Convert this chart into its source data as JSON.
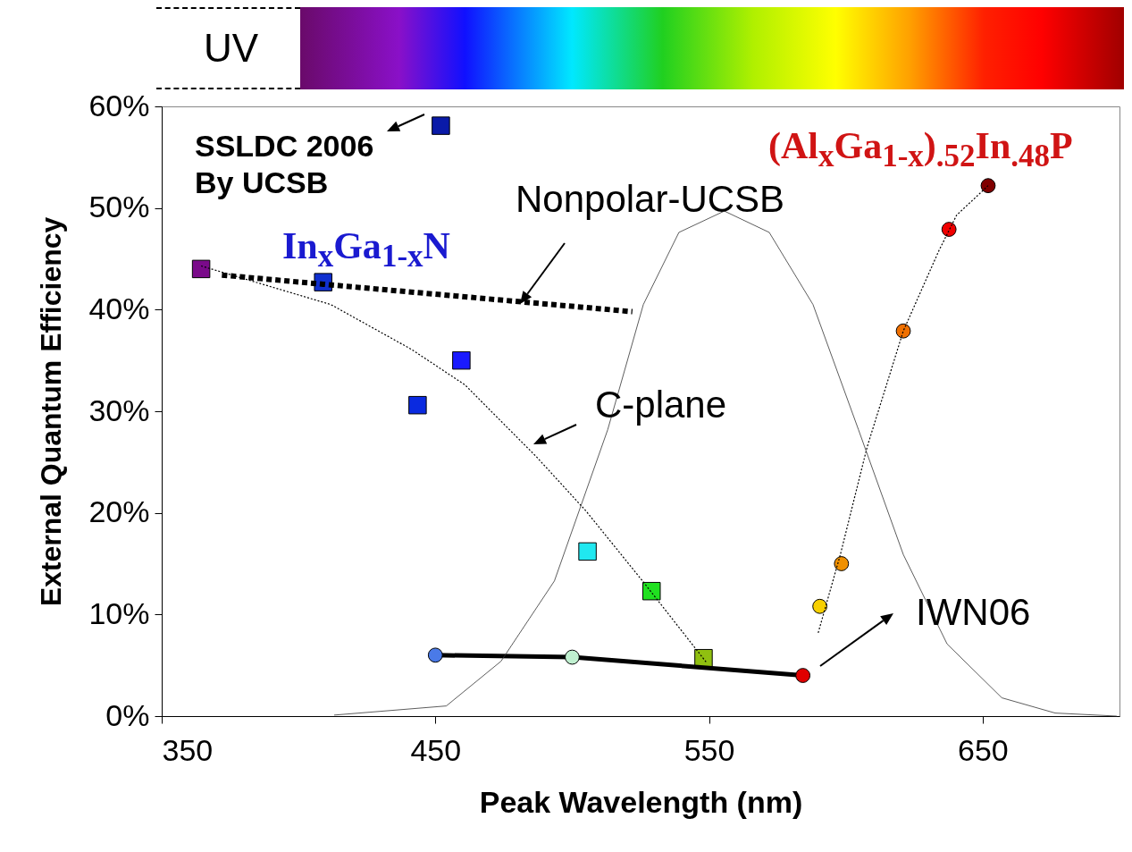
{
  "chart_data": {
    "type": "scatter",
    "xlabel": "Peak Wavelength (nm)",
    "ylabel": "External Quantum Efficiency",
    "xlim": [
      350,
      700
    ],
    "xticks": [
      350,
      450,
      550,
      650
    ],
    "ylim": [
      0,
      60
    ],
    "yticks": [
      {
        "value": 0,
        "label": "0%"
      },
      {
        "value": 10,
        "label": "10%"
      },
      {
        "value": 20,
        "label": "20%"
      },
      {
        "value": 30,
        "label": "30%"
      },
      {
        "value": 40,
        "label": "40%"
      },
      {
        "value": 50,
        "label": "50%"
      },
      {
        "value": 60,
        "label": "60%"
      }
    ],
    "grid": false,
    "series": [
      {
        "marker": "square",
        "x": [
          364.4,
          409,
          452,
          459.5,
          443.5,
          505.6,
          529,
          548
        ],
        "values": [
          44.0,
          42.7,
          58.1,
          35.0,
          30.6,
          16.2,
          12.3,
          5.7
        ],
        "colors": [
          "#7a0a8a",
          "#1030d0",
          "#0a1aa8",
          "#1a1aff",
          "#0a2ae0",
          "#20e8f0",
          "#20e020",
          "#90c010"
        ]
      },
      {
        "marker": "circle",
        "x": [
          590.5,
          598.4,
          621,
          637.7,
          652
        ],
        "values": [
          10.8,
          15.0,
          37.9,
          47.9,
          52.2
        ],
        "colors": [
          "#f8d000",
          "#f09000",
          "#f07000",
          "#f00000",
          "#800000"
        ]
      },
      {
        "type": "line",
        "marker": "circle",
        "line_style": "solid",
        "color": "#000000",
        "x": [
          450,
          500,
          584.3
        ],
        "values": [
          6.0,
          5.8,
          4.0
        ],
        "colors": [
          "#4a7ae8",
          "#c0f0d0",
          "#e00000"
        ]
      },
      {
        "type": "line",
        "marker": "none",
        "line_style": "dashed",
        "color": "#000000",
        "x": [
          372,
          409,
          522
        ],
        "values": [
          43.4,
          42.5,
          39.8
        ]
      },
      {
        "type": "line",
        "marker": "none",
        "line_style": "dotted",
        "color": "#000000",
        "x": [
          364.4,
          411.8,
          441.2,
          460.8,
          487,
          505,
          526,
          549
        ],
        "values": [
          44.3,
          40.5,
          36.1,
          32.6,
          25.5,
          20.2,
          13.2,
          5.3
        ]
      },
      {
        "type": "line",
        "marker": "none",
        "line_style": "dotted",
        "color": "#000000",
        "x": [
          589.9,
          598,
          607.8,
          621,
          634,
          640.5,
          652
        ],
        "values": [
          8.2,
          15.9,
          26.5,
          37.9,
          45.8,
          49.3,
          52.2
        ]
      },
      {
        "type": "line",
        "marker": "none",
        "line_style": "solid",
        "color": "#333333",
        "x": [
          413,
          454,
          474,
          493.5,
          513,
          526,
          539,
          555.6,
          572,
          588,
          604.6,
          621,
          637,
          657,
          676.5,
          699
        ],
        "values": [
          0.1,
          1,
          5.4,
          13.3,
          28.2,
          40.5,
          47.6,
          49.7,
          47.6,
          40.5,
          28.2,
          15.9,
          7.1,
          1.8,
          0.3,
          0
        ]
      }
    ],
    "annotations": [
      "UV",
      "SSLDC 2006\nBy UCSB",
      "Nonpolar-UCSB",
      "In$_{x}$Ga$_{1-x}$N",
      "(Al$_{x}$Ga$_{1-x}$)$_{.52}$In$_{.48}$P",
      "C-plane",
      "IWN06"
    ]
  }
}
